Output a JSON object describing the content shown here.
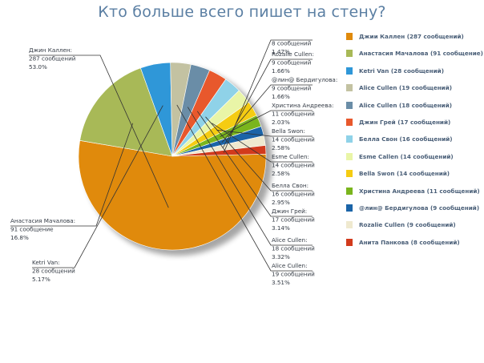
{
  "chart_data": {
    "type": "pie",
    "title": "Кто больше всего пишет на стену?",
    "slices": [
      {
        "name": "Джии Каллен",
        "value": 287,
        "callout": [
          "Джин Каллен:",
          "287 сообщений",
          "53.0%"
        ],
        "legend": "Джии Каллен (287 сообщений)",
        "color": "#e08a0c"
      },
      {
        "name": "Анастасия Мачалова",
        "value": 91,
        "callout": [
          "Анастасия Мачалова:",
          "91 сообщение",
          "16.8%"
        ],
        "legend": "Анастасия Мачалова (91 сообщение)",
        "color": "#a8b957"
      },
      {
        "name": "Ketri Van",
        "value": 28,
        "callout": [
          "Ketri Van:",
          "28 сообщений",
          "5.17%"
        ],
        "legend": "Ketri Van (28 сообщений)",
        "color": "#2f97d8"
      },
      {
        "name": "Alice Cullen",
        "value": 19,
        "callout": [
          "Alice Cullen:",
          "19 сообщений",
          "3.51%"
        ],
        "legend": "Alice Cullen (19 сообщений)",
        "color": "#c3c2a2"
      },
      {
        "name": "Alice Cullen",
        "value": 18,
        "callout": [
          "Alice Cullen:",
          "18 сообщений",
          "3.32%"
        ],
        "legend": "Alice Cullen (18 сообщений)",
        "color": "#6a8da7"
      },
      {
        "name": "Джин Грей",
        "value": 17,
        "callout": [
          "Джин Грей:",
          "17 сообщений",
          "3.14%"
        ],
        "legend": "Джин Грей (17 сообщений)",
        "color": "#e8582c"
      },
      {
        "name": "Белла Свон",
        "value": 16,
        "callout": [
          "Белла Свон:",
          "16 сообщений",
          "2.95%"
        ],
        "legend": "Белла Свон (16 сообщений)",
        "color": "#8fd2e8"
      },
      {
        "name": "Esme Callen",
        "value": 14,
        "callout": [
          "Esme Cullen:",
          "14 сообщений",
          "2.58%"
        ],
        "legend": "Esme Callen (14 сообщений)",
        "color": "#e9f5a7"
      },
      {
        "name": "Bella Swon",
        "value": 14,
        "callout": [
          "Bella Swon:",
          "14 сообщений",
          "2.58%"
        ],
        "legend": "Bella Swon (14 сообщений)",
        "color": "#f5cc12"
      },
      {
        "name": "Христина Андреева",
        "value": 11,
        "callout": [
          "Христина Андреева:",
          "11 сообщений",
          "2.03%"
        ],
        "legend": "Христина Андреева (11 сообщений)",
        "color": "#7ab51d"
      },
      {
        "name": "@лин@ Бердигулова",
        "value": 9,
        "callout": [
          "@лин@ Бердигулова:",
          "9 сообщений",
          "1.66%"
        ],
        "legend": "@лин@ Бердигулова (9 сообщений)",
        "color": "#1b64a8"
      },
      {
        "name": "Rozalie Cullen",
        "value": 9,
        "callout": [
          "Rozalie Cullen:",
          "9 сообщений",
          "1.66%"
        ],
        "legend": "Rozalie Cullen (9 сообщений)",
        "color": "#efe9cf"
      },
      {
        "name": "Анита Панкова",
        "value": 8,
        "callout": [
          "",
          "8 сообщений",
          "1.47%"
        ],
        "legend": "Анита Панкова (8 сообщений)",
        "color": "#d23a1c"
      }
    ]
  }
}
